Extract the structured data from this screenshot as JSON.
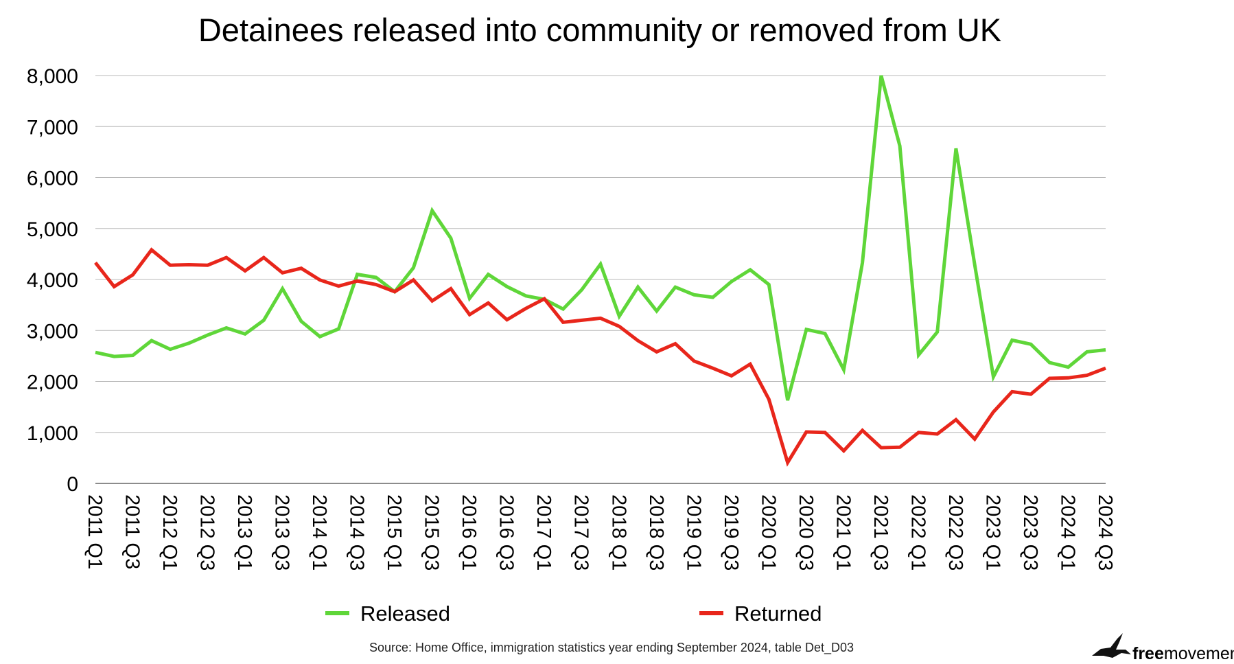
{
  "chart_data": {
    "type": "line",
    "title": "Detainees released into community or removed from UK",
    "xlabel": "",
    "ylabel": "",
    "ylim": [
      0,
      8000
    ],
    "yticks": [
      "0",
      "1,000",
      "2,000",
      "3,000",
      "4,000",
      "5,000",
      "6,000",
      "7,000",
      "8,000"
    ],
    "yticks_values": [
      0,
      1000,
      2000,
      3000,
      4000,
      5000,
      6000,
      7000,
      8000
    ],
    "grid": true,
    "legend_position": "bottom",
    "x": [
      "2011 Q1",
      "2011 Q2",
      "2011 Q3",
      "2011 Q4",
      "2012 Q1",
      "2012 Q2",
      "2012 Q3",
      "2012 Q4",
      "2013 Q1",
      "2013 Q2",
      "2013 Q3",
      "2013 Q4",
      "2014 Q1",
      "2014 Q2",
      "2014 Q3",
      "2014 Q4",
      "2015 Q1",
      "2015 Q2",
      "2015 Q3",
      "2015 Q4",
      "2016 Q1",
      "2016 Q2",
      "2016 Q3",
      "2016 Q4",
      "2017 Q1",
      "2017 Q2",
      "2017 Q3",
      "2017 Q4",
      "2018 Q1",
      "2018 Q2",
      "2018 Q3",
      "2018 Q4",
      "2019 Q1",
      "2019 Q2",
      "2019 Q3",
      "2019 Q4",
      "2020 Q1",
      "2020 Q2",
      "2020 Q3",
      "2020 Q4",
      "2021 Q1",
      "2021 Q2",
      "2021 Q3",
      "2021 Q4",
      "2022 Q1",
      "2022 Q2",
      "2022 Q3",
      "2022 Q4",
      "2023 Q1",
      "2023 Q2",
      "2023 Q3",
      "2023 Q4",
      "2024 Q1",
      "2024 Q2",
      "2024 Q3"
    ],
    "x_tick_labels": [
      "2011 Q1",
      "2011 Q3",
      "2012 Q1",
      "2012 Q3",
      "2013 Q1",
      "2013 Q3",
      "2014 Q1",
      "2014 Q3",
      "2015 Q1",
      "2015 Q3",
      "2016 Q1",
      "2016 Q3",
      "2017 Q1",
      "2017 Q3",
      "2018 Q1",
      "2018 Q3",
      "2019 Q1",
      "2019 Q3",
      "2020 Q1",
      "2020 Q3",
      "2021 Q1",
      "2021 Q3",
      "2022 Q1",
      "2022 Q3",
      "2023 Q1",
      "2023 Q3",
      "2024 Q1",
      "2024 Q3"
    ],
    "series": [
      {
        "name": "Released",
        "color": "#5fd639",
        "values": [
          2570,
          2490,
          2510,
          2800,
          2630,
          2750,
          2910,
          3050,
          2930,
          3200,
          3820,
          3180,
          2880,
          3030,
          4100,
          4040,
          3760,
          4230,
          5350,
          4810,
          3630,
          4100,
          3860,
          3680,
          3610,
          3420,
          3800,
          4300,
          3280,
          3850,
          3380,
          3850,
          3700,
          3650,
          3960,
          4190,
          3900,
          1630,
          3020,
          2940,
          2230,
          4330,
          8000,
          6620,
          2520,
          2970,
          6570,
          4290,
          2090,
          2810,
          2730,
          2370,
          2280,
          2580,
          2620
        ]
      },
      {
        "name": "Returned",
        "color": "#e8261b",
        "values": [
          4330,
          3860,
          4090,
          4580,
          4280,
          4290,
          4280,
          4430,
          4170,
          4430,
          4130,
          4220,
          3990,
          3870,
          3970,
          3900,
          3760,
          3990,
          3580,
          3820,
          3310,
          3540,
          3210,
          3430,
          3620,
          3160,
          3200,
          3240,
          3080,
          2800,
          2580,
          2740,
          2400,
          2260,
          2110,
          2340,
          1650,
          410,
          1010,
          1000,
          640,
          1040,
          700,
          710,
          1000,
          970,
          1250,
          870,
          1400,
          1800,
          1750,
          2060,
          2070,
          2120,
          2260
        ]
      }
    ]
  },
  "source": "Source: Home Office, immigration statistics year ending September 2024, table Det_D03",
  "brand": {
    "strong": "free",
    "light": "movement"
  }
}
